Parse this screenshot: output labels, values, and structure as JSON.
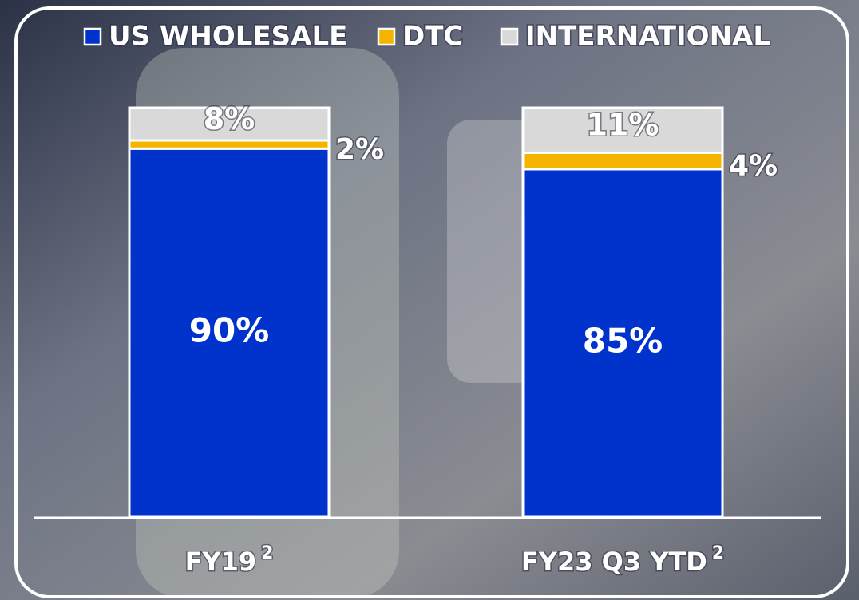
{
  "chart_data": {
    "type": "stacked-bar",
    "categories": [
      "FY19",
      "FY23 Q3 YTD"
    ],
    "category_notes": [
      "2",
      "2"
    ],
    "ylim": [
      0,
      100
    ],
    "series": [
      {
        "name": "US WHOLESALE",
        "color": "#0033cc",
        "values": [
          90,
          85
        ],
        "value_labels": [
          "90%",
          "85%"
        ]
      },
      {
        "name": "DTC",
        "color": "#f5b400",
        "values": [
          2,
          4
        ],
        "value_labels": [
          "2%",
          "4%"
        ]
      },
      {
        "name": "INTERNATIONAL",
        "color": "#d9d9d9",
        "values": [
          8,
          11
        ],
        "value_labels": [
          "8%",
          "11%"
        ]
      }
    ]
  }
}
